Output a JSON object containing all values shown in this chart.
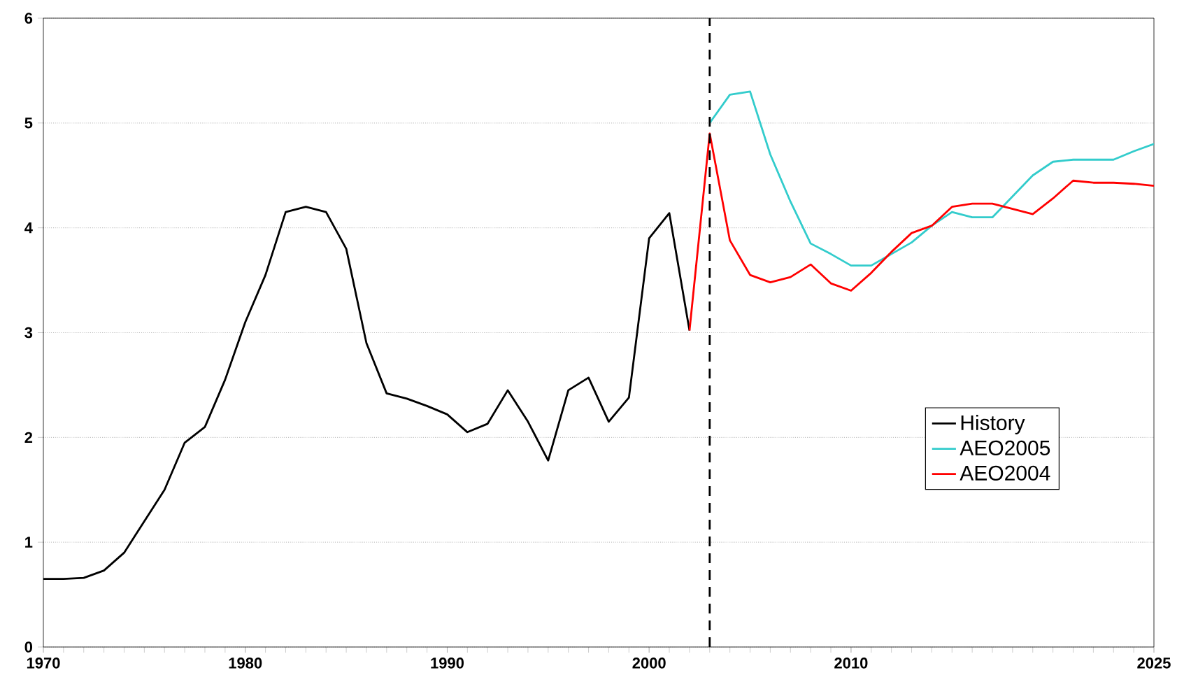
{
  "chart_data": {
    "type": "line",
    "xlim": [
      1970,
      2025
    ],
    "xticks": [
      1970,
      1980,
      1990,
      2000,
      2010,
      2025
    ],
    "ylim": [
      0,
      6
    ],
    "yticks": [
      0,
      1,
      2,
      3,
      4,
      5,
      6
    ],
    "grid": "y",
    "legend": "right",
    "marker": "none",
    "line_style": "solid",
    "ref_lines": [
      {
        "axis": "x",
        "value": 2003,
        "color": "#000000",
        "line_style": "dashed"
      }
    ],
    "series": [
      {
        "name": "History",
        "color": "#000000",
        "x": [
          1970,
          1971,
          1972,
          1973,
          1974,
          1975,
          1976,
          1977,
          1978,
          1979,
          1980,
          1981,
          1982,
          1983,
          1984,
          1985,
          1986,
          1987,
          1988,
          1989,
          1990,
          1991,
          1992,
          1993,
          1994,
          1995,
          1996,
          1997,
          1998,
          1999,
          2000,
          2001,
          2002
        ],
        "values": [
          0.65,
          0.65,
          0.66,
          0.73,
          0.9,
          1.2,
          1.5,
          1.95,
          2.1,
          2.55,
          3.1,
          3.55,
          4.15,
          4.2,
          4.15,
          3.8,
          2.9,
          2.42,
          2.37,
          2.3,
          2.22,
          2.05,
          2.13,
          2.45,
          2.15,
          1.78,
          2.45,
          2.57,
          2.15,
          2.38,
          3.9,
          4.14,
          3.02
        ]
      },
      {
        "name": "AEO2005",
        "color": "#33cccc",
        "x": [
          2003,
          2004,
          2005,
          2006,
          2007,
          2008,
          2009,
          2010,
          2011,
          2012,
          2013,
          2014,
          2015,
          2016,
          2017,
          2018,
          2019,
          2020,
          2021,
          2022,
          2023,
          2024,
          2025
        ],
        "values": [
          5.0,
          5.27,
          5.3,
          4.7,
          4.25,
          3.85,
          3.75,
          3.64,
          3.64,
          3.75,
          3.86,
          4.02,
          4.15,
          4.1,
          4.1,
          4.3,
          4.5,
          4.63,
          4.65,
          4.65,
          4.65,
          4.73,
          4.8
        ]
      },
      {
        "name": "AEO2004",
        "color": "#ff0000",
        "x": [
          2002,
          2003,
          2004,
          2005,
          2006,
          2007,
          2008,
          2009,
          2010,
          2011,
          2012,
          2013,
          2014,
          2015,
          2016,
          2017,
          2018,
          2019,
          2020,
          2021,
          2022,
          2023,
          2024,
          2025
        ],
        "values": [
          3.02,
          4.9,
          3.88,
          3.55,
          3.48,
          3.53,
          3.65,
          3.47,
          3.4,
          3.57,
          3.77,
          3.95,
          4.02,
          4.2,
          4.23,
          4.23,
          4.18,
          4.13,
          4.28,
          4.45,
          4.43,
          4.43,
          4.42,
          4.4
        ]
      }
    ]
  }
}
